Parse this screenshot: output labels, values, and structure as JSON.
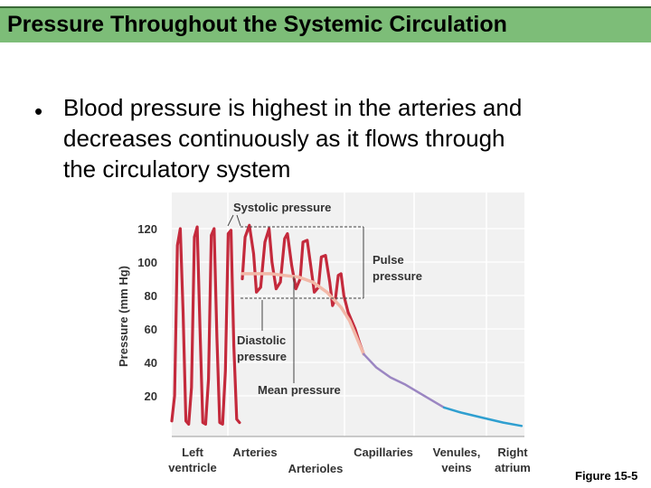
{
  "slide": {
    "title": "Pressure Throughout the Systemic Circulation",
    "bullet_lines": [
      "Blood pressure is highest in the arteries and",
      "decreases continuously as it flows through",
      "the circulatory system"
    ],
    "figure_label": "Figure 15-5"
  },
  "colors": {
    "title_bar": "#7dbd78",
    "pressure_wave": "#c42a3c",
    "mean_pressure": "#f2b8a8",
    "venous_segment": "#9b86c2",
    "venule_segment": "#2f9fd0",
    "plot_background": "#f1f1f1"
  },
  "chart_data": {
    "type": "line",
    "title": "",
    "ylabel": "Pressure (mm Hg)",
    "xlabel": "",
    "ylim": [
      0,
      130
    ],
    "yticks": [
      20,
      40,
      60,
      80,
      100,
      120
    ],
    "grid": true,
    "regions": [
      "Left ventricle",
      "Arteries",
      "Arterioles",
      "Capillaries",
      "Venules, veins",
      "Right atrium"
    ],
    "region_labels": [
      {
        "text": [
          "Left",
          "ventricle"
        ]
      },
      {
        "text": [
          "Arteries"
        ]
      },
      {
        "text": [
          "Arterioles"
        ]
      },
      {
        "text": [
          "Capillaries"
        ]
      },
      {
        "text": [
          "Venules,",
          "veins"
        ]
      },
      {
        "text": [
          "Right",
          "atrium"
        ]
      }
    ],
    "series": [
      {
        "key": "left_ventricle",
        "x": [
          0.0,
          0.2,
          0.4,
          0.6,
          0.8,
          1.0,
          1.2,
          1.4,
          1.6,
          1.8,
          2.0,
          2.2,
          2.4,
          2.6,
          2.8,
          3.0,
          3.2,
          3.4,
          3.6,
          3.8,
          4.0,
          4.2,
          4.4,
          4.6,
          4.8
        ],
        "values": [
          5,
          20,
          110,
          120,
          70,
          5,
          3,
          25,
          115,
          121,
          60,
          4,
          3,
          30,
          116,
          120,
          55,
          4,
          3,
          35,
          117,
          119,
          50,
          6,
          4
        ]
      },
      {
        "key": "arterial_pressure",
        "x": [
          5.0,
          5.2,
          5.5,
          5.8,
          6.0,
          6.3,
          6.6,
          6.9,
          7.1,
          7.4,
          7.7,
          8.0,
          8.2,
          8.5,
          8.8,
          9.1,
          9.3,
          9.6,
          9.9,
          10.1,
          10.4,
          10.6,
          10.9,
          11.2,
          11.4,
          11.6,
          11.8,
          12.0,
          12.2,
          12.5,
          12.8,
          13.0,
          13.3,
          13.6
        ],
        "values": [
          90,
          115,
          122,
          105,
          82,
          85,
          112,
          120,
          100,
          84,
          88,
          114,
          117,
          98,
          84,
          90,
          112,
          113,
          95,
          82,
          85,
          103,
          104,
          88,
          74,
          78,
          92,
          93,
          80,
          70,
          64,
          60,
          52,
          45
        ]
      },
      {
        "key": "mean_pressure",
        "name": "Mean pressure",
        "x": [
          5.0,
          6.0,
          7.0,
          8.0,
          9.0,
          10.0,
          11.0,
          12.0,
          12.6,
          13.2,
          13.6
        ],
        "values": [
          93,
          93,
          93,
          92,
          91,
          88,
          82,
          73,
          65,
          53,
          45
        ]
      },
      {
        "key": "venous_pressure",
        "x": [
          13.6,
          14.5,
          15.5,
          16.5,
          17.5,
          18.5,
          19.3
        ],
        "values": [
          45,
          37,
          31,
          27,
          22,
          17,
          13
        ]
      },
      {
        "key": "venule_pressure",
        "x": [
          19.3,
          20.5,
          22.0,
          23.5,
          24.8
        ],
        "values": [
          13,
          10,
          7,
          4,
          2
        ]
      }
    ],
    "annotations": [
      "Systolic pressure",
      "Pulse pressure",
      "Diastolic pressure",
      "Mean pressure"
    ]
  }
}
